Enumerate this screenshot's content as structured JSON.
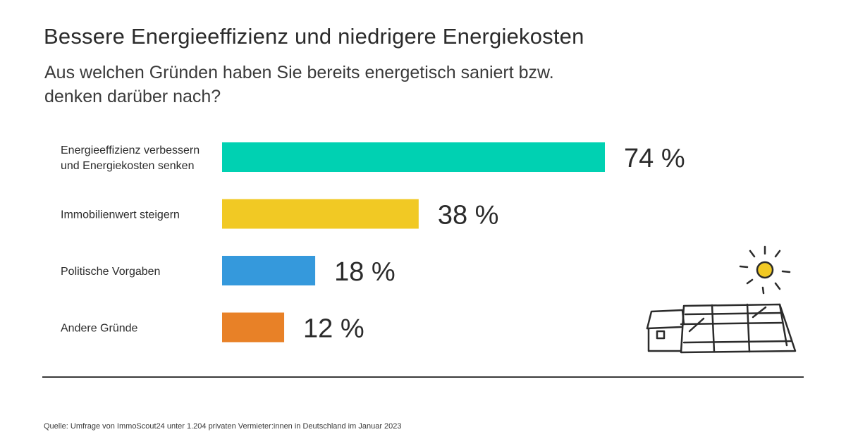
{
  "header": {
    "title": "Bessere Energieeffizienz und niedrigere Energiekosten",
    "subtitle": "Aus welchen Gründen haben Sie bereits energetisch saniert bzw. denken darüber nach?"
  },
  "footer": {
    "source": "Quelle: Umfrage von ImmoScout24 unter 1.204 privaten Vermieter:innen in Deutschland im Januar 2023"
  },
  "chart_data": {
    "type": "bar",
    "orientation": "horizontal",
    "categories": [
      [
        "Energieeffizienz verbessern",
        "und Energiekosten senken"
      ],
      [
        "Immobilienwert steigern"
      ],
      [
        "Politische Vorgaben"
      ],
      [
        "Andere Gründe"
      ]
    ],
    "values": [
      74,
      38,
      18,
      12
    ],
    "value_labels": [
      "74 %",
      "38 %",
      "18 %",
      "12 %"
    ],
    "colors": [
      "#00d1b2",
      "#f1c924",
      "#3599dc",
      "#e88127"
    ],
    "xlim": [
      0,
      74
    ],
    "grid": false,
    "legend": "none"
  },
  "illustration": {
    "icons": [
      "sun-icon",
      "house-with-solar-panels-icon"
    ],
    "sun_color": "#f1c924",
    "line_color": "#2b2b2b"
  }
}
